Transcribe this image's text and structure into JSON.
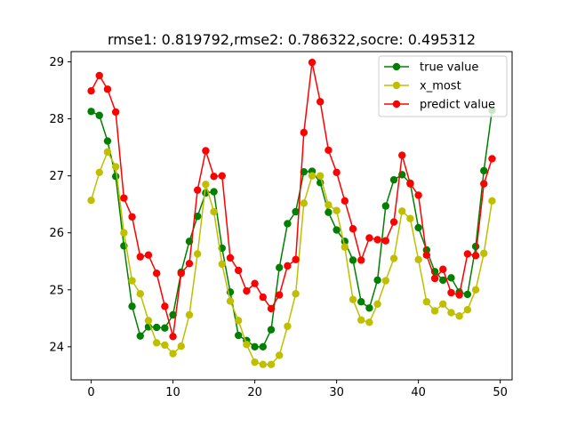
{
  "chart_data": {
    "type": "line",
    "title": "rmse1: 0.819792,rmse2: 0.786322,socre: 0.495312",
    "xlabel": "",
    "ylabel": "",
    "xlim": [
      -2.45,
      51.45
    ],
    "ylim": [
      23.42,
      29.18
    ],
    "xticks": [
      0,
      10,
      20,
      30,
      40,
      50
    ],
    "yticks": [
      24,
      25,
      26,
      27,
      28,
      29
    ],
    "grid": false,
    "legend_position": "upper right",
    "x": [
      0,
      1,
      2,
      3,
      4,
      5,
      6,
      7,
      8,
      9,
      10,
      11,
      12,
      13,
      14,
      15,
      16,
      17,
      18,
      19,
      20,
      21,
      22,
      23,
      24,
      25,
      26,
      27,
      28,
      29,
      30,
      31,
      32,
      33,
      34,
      35,
      36,
      37,
      38,
      39,
      40,
      41,
      42,
      43,
      44,
      45,
      46,
      47,
      48,
      49
    ],
    "series": [
      {
        "name": "true value",
        "color": "#008000",
        "values": [
          28.13,
          28.06,
          27.61,
          26.99,
          25.77,
          24.71,
          24.19,
          24.35,
          24.34,
          24.33,
          24.56,
          25.31,
          25.85,
          26.29,
          26.7,
          26.72,
          25.73,
          24.96,
          24.2,
          24.11,
          24.0,
          24.0,
          24.3,
          25.39,
          26.16,
          26.37,
          27.07,
          27.08,
          26.88,
          26.36,
          26.05,
          25.85,
          25.52,
          24.79,
          24.68,
          25.17,
          26.47,
          26.93,
          27.02,
          26.87,
          26.09,
          25.7,
          25.32,
          25.17,
          25.21,
          24.96,
          24.92,
          25.76,
          27.09,
          28.15
        ]
      },
      {
        "name": "x_most",
        "color": "#bfbf00",
        "values": [
          26.57,
          27.06,
          27.42,
          27.16,
          26.0,
          25.16,
          24.93,
          24.46,
          24.07,
          24.03,
          23.88,
          24.01,
          24.56,
          25.63,
          26.85,
          26.37,
          25.45,
          24.8,
          24.46,
          24.04,
          23.73,
          23.69,
          23.69,
          23.85,
          24.36,
          24.93,
          26.52,
          27.0,
          27.0,
          26.49,
          26.39,
          25.75,
          24.83,
          24.47,
          24.43,
          24.75,
          25.16,
          25.55,
          26.38,
          26.25,
          25.53,
          24.79,
          24.63,
          24.75,
          24.6,
          24.54,
          24.65,
          25.0,
          25.64,
          26.56
        ]
      },
      {
        "name": "predict value",
        "color": "#ff0000",
        "values": [
          28.49,
          28.76,
          28.52,
          28.12,
          26.61,
          26.28,
          25.58,
          25.61,
          25.29,
          24.71,
          24.18,
          25.29,
          25.46,
          26.75,
          27.44,
          26.99,
          27.0,
          25.56,
          25.34,
          24.98,
          25.11,
          24.87,
          24.67,
          24.91,
          25.42,
          25.53,
          27.76,
          28.99,
          28.3,
          27.45,
          27.06,
          26.56,
          26.07,
          25.52,
          25.91,
          25.88,
          25.86,
          26.19,
          27.36,
          26.86,
          26.66,
          25.61,
          25.2,
          25.36,
          24.95,
          24.91,
          25.63,
          25.6,
          26.86,
          27.3
        ]
      }
    ]
  }
}
